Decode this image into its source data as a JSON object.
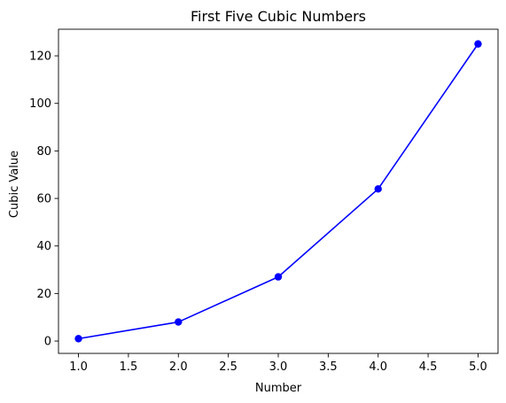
{
  "chart_data": {
    "type": "line",
    "title": "First Five Cubic Numbers",
    "xlabel": "Number",
    "ylabel": "Cubic Value",
    "x": [
      1,
      2,
      3,
      4,
      5
    ],
    "series": [
      {
        "values": [
          1,
          8,
          27,
          64,
          125
        ],
        "color": "#0000ff",
        "marker": "circle"
      }
    ],
    "xlim": [
      0.8,
      5.2
    ],
    "ylim": [
      -5.2,
      131.2
    ],
    "xticks": [
      1.0,
      1.5,
      2.0,
      2.5,
      3.0,
      3.5,
      4.0,
      4.5,
      5.0
    ],
    "xtick_labels": [
      "1.0",
      "1.5",
      "2.0",
      "2.5",
      "3.0",
      "3.5",
      "4.0",
      "4.5",
      "5.0"
    ],
    "yticks": [
      0,
      20,
      40,
      60,
      80,
      100,
      120
    ],
    "ytick_labels": [
      "0",
      "20",
      "40",
      "60",
      "80",
      "100",
      "120"
    ],
    "grid": false,
    "legend": false
  }
}
